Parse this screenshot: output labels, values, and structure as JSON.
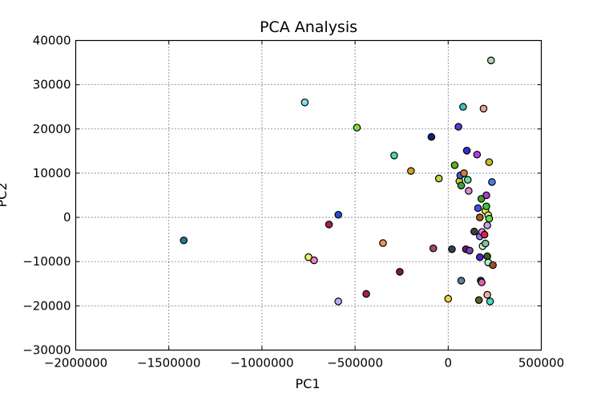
{
  "chart_data": {
    "type": "scatter",
    "title": "PCA Analysis",
    "xlabel": "PC1",
    "ylabel": "PC2",
    "xlim": [
      -2000000,
      500000
    ],
    "ylim": [
      -30000,
      40000
    ],
    "grid": true,
    "x_ticks": [
      -2000000,
      -1500000,
      -1000000,
      -500000,
      0,
      500000
    ],
    "y_ticks": [
      -30000,
      -20000,
      -10000,
      0,
      10000,
      20000,
      30000,
      40000
    ],
    "x_tick_labels": [
      "−2000000",
      "−1500000",
      "−1000000",
      "−500000",
      "0",
      "500000"
    ],
    "y_tick_labels": [
      "−30000",
      "−20000",
      "−10000",
      "0",
      "10000",
      "20000",
      "30000",
      "40000"
    ],
    "points": [
      {
        "x": -1420000,
        "y": -5200,
        "color": "#1f7f8f"
      },
      {
        "x": -770000,
        "y": 26000,
        "color": "#7fe0f0"
      },
      {
        "x": -750000,
        "y": -9000,
        "color": "#f0f060"
      },
      {
        "x": -720000,
        "y": -9700,
        "color": "#f080c8"
      },
      {
        "x": -640000,
        "y": -1600,
        "color": "#a02060"
      },
      {
        "x": -590000,
        "y": 600,
        "color": "#2050d0"
      },
      {
        "x": -590000,
        "y": -19000,
        "color": "#b0b0f0"
      },
      {
        "x": -490000,
        "y": 20300,
        "color": "#80e040"
      },
      {
        "x": -440000,
        "y": -17300,
        "color": "#a02050"
      },
      {
        "x": -350000,
        "y": -5800,
        "color": "#f09060"
      },
      {
        "x": -290000,
        "y": 14000,
        "color": "#40e0a0"
      },
      {
        "x": -260000,
        "y": -12300,
        "color": "#702040"
      },
      {
        "x": -200000,
        "y": 10500,
        "color": "#d0a020"
      },
      {
        "x": -90000,
        "y": 18200,
        "color": "#102080"
      },
      {
        "x": -80000,
        "y": -7000,
        "color": "#a05060"
      },
      {
        "x": -50000,
        "y": 8800,
        "color": "#c0d040"
      },
      {
        "x": 0,
        "y": -18400,
        "color": "#f0d040"
      },
      {
        "x": 20000,
        "y": -7200,
        "color": "#304050"
      },
      {
        "x": 35000,
        "y": 11800,
        "color": "#60b020"
      },
      {
        "x": 55000,
        "y": 20500,
        "color": "#5040d0"
      },
      {
        "x": 60000,
        "y": 8200,
        "color": "#c0d020"
      },
      {
        "x": 65000,
        "y": 9500,
        "color": "#4060e0"
      },
      {
        "x": 70000,
        "y": 7200,
        "color": "#40a040"
      },
      {
        "x": 70000,
        "y": -14300,
        "color": "#6080a0"
      },
      {
        "x": 80000,
        "y": 25000,
        "color": "#40c0c0"
      },
      {
        "x": 85000,
        "y": 10000,
        "color": "#d08040"
      },
      {
        "x": 95000,
        "y": -7200,
        "color": "#602060"
      },
      {
        "x": 100000,
        "y": 15100,
        "color": "#3030d0"
      },
      {
        "x": 105000,
        "y": 8500,
        "color": "#60e0a0"
      },
      {
        "x": 110000,
        "y": 6000,
        "color": "#d090d0"
      },
      {
        "x": 115000,
        "y": -7500,
        "color": "#8040b0"
      },
      {
        "x": 140000,
        "y": -3200,
        "color": "#404040"
      },
      {
        "x": 155000,
        "y": 14200,
        "color": "#b040e0"
      },
      {
        "x": 160000,
        "y": 2100,
        "color": "#4050f0"
      },
      {
        "x": 165000,
        "y": -18700,
        "color": "#606020"
      },
      {
        "x": 170000,
        "y": -9000,
        "color": "#5020d0"
      },
      {
        "x": 170000,
        "y": -4300,
        "color": "#8080f0"
      },
      {
        "x": 170000,
        "y": 0,
        "color": "#a06020"
      },
      {
        "x": 175000,
        "y": -14300,
        "color": "#204060"
      },
      {
        "x": 178000,
        "y": 4200,
        "color": "#40a020"
      },
      {
        "x": 180000,
        "y": -14700,
        "color": "#e060b0"
      },
      {
        "x": 182000,
        "y": -3300,
        "color": "#f080f0"
      },
      {
        "x": 185000,
        "y": -6500,
        "color": "#d0f0d0"
      },
      {
        "x": 190000,
        "y": 24600,
        "color": "#f0a0a0"
      },
      {
        "x": 195000,
        "y": -3900,
        "color": "#e02040"
      },
      {
        "x": 200000,
        "y": 1500,
        "color": "#f0f020"
      },
      {
        "x": 200000,
        "y": -5900,
        "color": "#80c0a0"
      },
      {
        "x": 205000,
        "y": 5000,
        "color": "#a040d0"
      },
      {
        "x": 205000,
        "y": 2500,
        "color": "#40c040"
      },
      {
        "x": 210000,
        "y": -1800,
        "color": "#c0a0e0"
      },
      {
        "x": 210000,
        "y": -8800,
        "color": "#306020"
      },
      {
        "x": 210000,
        "y": -17500,
        "color": "#f0b0a0"
      },
      {
        "x": 215000,
        "y": 500,
        "color": "#e0e0a0"
      },
      {
        "x": 215000,
        "y": -10200,
        "color": "#b0f0d0"
      },
      {
        "x": 220000,
        "y": 12500,
        "color": "#c0c020"
      },
      {
        "x": 220000,
        "y": -300,
        "color": "#60e040"
      },
      {
        "x": 225000,
        "y": -19000,
        "color": "#40e0c0"
      },
      {
        "x": 230000,
        "y": 35500,
        "color": "#b0d0b0"
      },
      {
        "x": 235000,
        "y": 8000,
        "color": "#4080f0"
      },
      {
        "x": 240000,
        "y": -10800,
        "color": "#a05030"
      }
    ]
  }
}
